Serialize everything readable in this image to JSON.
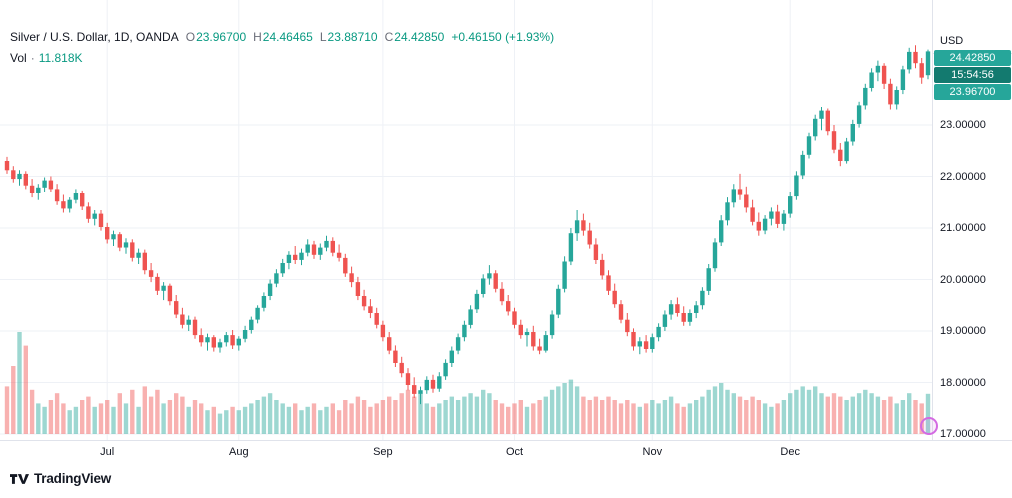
{
  "header": {
    "symbol": "Silver / U.S. Dollar, 1D, OANDA",
    "ohlc": [
      {
        "label": "O",
        "value": "23.96700"
      },
      {
        "label": "H",
        "value": "24.46465"
      },
      {
        "label": "L",
        "value": "23.88710"
      },
      {
        "label": "C",
        "value": "24.42850"
      }
    ],
    "change": "+0.46150 (+1.93%)",
    "vol_label": "Vol",
    "vol_sep": "·",
    "vol_value": "11.818K"
  },
  "axis": {
    "currency": "USD",
    "badges": {
      "last_price": "24.42850",
      "countdown": "15:54:56",
      "open_price": "23.96700"
    }
  },
  "footer": {
    "brand": "TradingView"
  },
  "colors": {
    "up": "#26a69a",
    "down": "#ef5350",
    "vol_up": "rgba(38,166,154,0.45)",
    "vol_down": "rgba(239,83,80,0.45)",
    "grid": "#eef1f6",
    "axis_text": "#131722",
    "accent_green": "#089981",
    "badge_last": "#26a69a",
    "badge_countdown": "#137a6f",
    "badge_open": "#26a69a"
  },
  "chart_data": {
    "type": "candlestick+volume",
    "title": "Silver / U.S. Dollar, 1D, OANDA",
    "timeframe": "1D",
    "ylabel": "USD",
    "ylim": [
      17.0,
      24.9
    ],
    "y_axis_ticks": [
      23,
      22,
      21,
      20,
      19,
      18,
      17
    ],
    "volume_unit": "K",
    "candle_format": [
      "open",
      "high",
      "low",
      "close",
      "volume_k"
    ],
    "month_labels": [
      {
        "label": "Jul",
        "index": 16
      },
      {
        "label": "Aug",
        "index": 37
      },
      {
        "label": "Sep",
        "index": 60
      },
      {
        "label": "Oct",
        "index": 81
      },
      {
        "label": "Nov",
        "index": 103
      },
      {
        "label": "Dec",
        "index": 125
      }
    ],
    "candles": [
      [
        22.3,
        22.38,
        22.05,
        22.12,
        14
      ],
      [
        22.12,
        22.2,
        21.88,
        21.95,
        20
      ],
      [
        21.95,
        22.12,
        21.82,
        22.05,
        30
      ],
      [
        22.05,
        22.1,
        21.75,
        21.82,
        26
      ],
      [
        21.82,
        21.95,
        21.6,
        21.68,
        13
      ],
      [
        21.68,
        21.85,
        21.55,
        21.78,
        9
      ],
      [
        21.78,
        21.98,
        21.7,
        21.92,
        8
      ],
      [
        21.92,
        22.0,
        21.7,
        21.75,
        10
      ],
      [
        21.75,
        21.85,
        21.45,
        21.52,
        12
      ],
      [
        21.52,
        21.65,
        21.3,
        21.38,
        9
      ],
      [
        21.38,
        21.6,
        21.3,
        21.55,
        7
      ],
      [
        21.55,
        21.75,
        21.48,
        21.68,
        8
      ],
      [
        21.68,
        21.72,
        21.35,
        21.42,
        10
      ],
      [
        21.42,
        21.5,
        21.1,
        21.18,
        11
      ],
      [
        21.18,
        21.35,
        21.05,
        21.28,
        8
      ],
      [
        21.28,
        21.35,
        20.95,
        21.02,
        9
      ],
      [
        21.02,
        21.1,
        20.7,
        20.78,
        10
      ],
      [
        20.78,
        20.95,
        20.65,
        20.88,
        8
      ],
      [
        20.88,
        20.92,
        20.55,
        20.62,
        12
      ],
      [
        20.62,
        20.8,
        20.5,
        20.72,
        9
      ],
      [
        20.72,
        20.78,
        20.35,
        20.42,
        13
      ],
      [
        20.42,
        20.6,
        20.3,
        20.52,
        8
      ],
      [
        20.52,
        20.58,
        20.1,
        20.18,
        14
      ],
      [
        20.18,
        20.32,
        19.95,
        20.05,
        11
      ],
      [
        20.05,
        20.12,
        19.7,
        19.78,
        13
      ],
      [
        19.78,
        19.95,
        19.6,
        19.88,
        9
      ],
      [
        19.88,
        19.92,
        19.5,
        19.58,
        10
      ],
      [
        19.58,
        19.7,
        19.25,
        19.32,
        12
      ],
      [
        19.32,
        19.45,
        19.05,
        19.12,
        11
      ],
      [
        19.12,
        19.3,
        19.0,
        19.22,
        8
      ],
      [
        19.22,
        19.28,
        18.85,
        18.92,
        10
      ],
      [
        18.92,
        19.05,
        18.7,
        18.78,
        9
      ],
      [
        18.78,
        18.95,
        18.62,
        18.88,
        7
      ],
      [
        18.88,
        18.92,
        18.6,
        18.68,
        8
      ],
      [
        18.68,
        18.85,
        18.58,
        18.78,
        6
      ],
      [
        18.78,
        18.98,
        18.7,
        18.92,
        7
      ],
      [
        18.92,
        19.02,
        18.65,
        18.72,
        8
      ],
      [
        18.72,
        18.9,
        18.62,
        18.85,
        7
      ],
      [
        18.85,
        19.1,
        18.78,
        19.02,
        8
      ],
      [
        19.02,
        19.28,
        18.95,
        19.22,
        9
      ],
      [
        19.22,
        19.5,
        19.15,
        19.45,
        10
      ],
      [
        19.45,
        19.75,
        19.38,
        19.68,
        11
      ],
      [
        19.68,
        20.0,
        19.6,
        19.92,
        12
      ],
      [
        19.92,
        20.2,
        19.85,
        20.12,
        10
      ],
      [
        20.12,
        20.4,
        20.05,
        20.32,
        9
      ],
      [
        20.32,
        20.55,
        20.2,
        20.48,
        8
      ],
      [
        20.48,
        20.65,
        20.3,
        20.38,
        9
      ],
      [
        20.38,
        20.6,
        20.28,
        20.52,
        7
      ],
      [
        20.52,
        20.78,
        20.45,
        20.68,
        8
      ],
      [
        20.68,
        20.75,
        20.4,
        20.48,
        9
      ],
      [
        20.48,
        20.7,
        20.38,
        20.62,
        7
      ],
      [
        20.62,
        20.85,
        20.55,
        20.75,
        8
      ],
      [
        20.75,
        20.82,
        20.45,
        20.52,
        9
      ],
      [
        20.52,
        20.68,
        20.35,
        20.42,
        7
      ],
      [
        20.42,
        20.5,
        20.05,
        20.12,
        10
      ],
      [
        20.12,
        20.25,
        19.85,
        19.95,
        9
      ],
      [
        19.95,
        20.05,
        19.6,
        19.68,
        11
      ],
      [
        19.68,
        19.8,
        19.4,
        19.48,
        10
      ],
      [
        19.48,
        19.62,
        19.25,
        19.35,
        8
      ],
      [
        19.35,
        19.45,
        19.05,
        19.12,
        9
      ],
      [
        19.12,
        19.2,
        18.8,
        18.88,
        10
      ],
      [
        18.88,
        18.98,
        18.55,
        18.62,
        11
      ],
      [
        18.62,
        18.72,
        18.3,
        18.38,
        10
      ],
      [
        18.38,
        18.5,
        18.1,
        18.18,
        12
      ],
      [
        18.18,
        18.28,
        17.85,
        17.95,
        13
      ],
      [
        17.95,
        18.1,
        17.7,
        17.78,
        11
      ],
      [
        17.78,
        17.92,
        17.58,
        17.85,
        12
      ],
      [
        17.85,
        18.12,
        17.78,
        18.05,
        9
      ],
      [
        18.05,
        18.15,
        17.8,
        17.88,
        8
      ],
      [
        17.88,
        18.2,
        17.82,
        18.12,
        9
      ],
      [
        18.12,
        18.45,
        18.05,
        18.38,
        10
      ],
      [
        18.38,
        18.7,
        18.3,
        18.62,
        11
      ],
      [
        18.62,
        18.95,
        18.55,
        18.88,
        10
      ],
      [
        18.88,
        19.2,
        18.8,
        19.12,
        11
      ],
      [
        19.12,
        19.5,
        19.05,
        19.42,
        12
      ],
      [
        19.42,
        19.8,
        19.35,
        19.72,
        11
      ],
      [
        19.72,
        20.1,
        19.65,
        20.02,
        13
      ],
      [
        20.02,
        20.28,
        19.9,
        20.12,
        12
      ],
      [
        20.12,
        20.18,
        19.75,
        19.82,
        10
      ],
      [
        19.82,
        19.95,
        19.5,
        19.58,
        9
      ],
      [
        19.58,
        19.7,
        19.3,
        19.38,
        8
      ],
      [
        19.38,
        19.45,
        19.05,
        19.12,
        9
      ],
      [
        19.12,
        19.22,
        18.85,
        18.92,
        10
      ],
      [
        18.92,
        19.05,
        18.7,
        18.98,
        8
      ],
      [
        18.98,
        19.1,
        18.62,
        18.7,
        9
      ],
      [
        18.7,
        18.85,
        18.55,
        18.62,
        10
      ],
      [
        18.62,
        19.0,
        18.58,
        18.92,
        11
      ],
      [
        18.92,
        19.4,
        18.85,
        19.32,
        13
      ],
      [
        19.32,
        19.9,
        19.25,
        19.82,
        14
      ],
      [
        19.82,
        20.45,
        19.75,
        20.35,
        15
      ],
      [
        20.35,
        21.0,
        20.28,
        20.9,
        16
      ],
      [
        20.9,
        21.35,
        20.75,
        21.15,
        14
      ],
      [
        21.15,
        21.28,
        20.85,
        20.95,
        11
      ],
      [
        20.95,
        21.1,
        20.6,
        20.68,
        10
      ],
      [
        20.68,
        20.8,
        20.3,
        20.38,
        11
      ],
      [
        20.38,
        20.5,
        20.0,
        20.08,
        10
      ],
      [
        20.08,
        20.18,
        19.7,
        19.78,
        11
      ],
      [
        19.78,
        19.92,
        19.45,
        19.52,
        10
      ],
      [
        19.52,
        19.6,
        19.15,
        19.22,
        9
      ],
      [
        19.22,
        19.35,
        18.9,
        18.98,
        10
      ],
      [
        18.98,
        19.05,
        18.62,
        18.7,
        9
      ],
      [
        18.7,
        18.88,
        18.55,
        18.8,
        8
      ],
      [
        18.8,
        18.92,
        18.58,
        18.65,
        9
      ],
      [
        18.65,
        18.95,
        18.58,
        18.88,
        10
      ],
      [
        18.88,
        19.15,
        18.8,
        19.08,
        9
      ],
      [
        19.08,
        19.4,
        19.0,
        19.32,
        10
      ],
      [
        19.32,
        19.6,
        19.22,
        19.52,
        11
      ],
      [
        19.52,
        19.65,
        19.28,
        19.35,
        9
      ],
      [
        19.35,
        19.48,
        19.1,
        19.18,
        8
      ],
      [
        19.18,
        19.42,
        19.1,
        19.35,
        9
      ],
      [
        19.35,
        19.58,
        19.25,
        19.5,
        10
      ],
      [
        19.5,
        19.85,
        19.42,
        19.78,
        11
      ],
      [
        19.78,
        20.3,
        19.7,
        20.22,
        13
      ],
      [
        20.22,
        20.8,
        20.15,
        20.72,
        14
      ],
      [
        20.72,
        21.25,
        20.65,
        21.15,
        15
      ],
      [
        21.15,
        21.6,
        21.05,
        21.5,
        13
      ],
      [
        21.5,
        21.85,
        21.4,
        21.75,
        12
      ],
      [
        21.75,
        22.05,
        21.55,
        21.65,
        11
      ],
      [
        21.65,
        21.8,
        21.3,
        21.4,
        10
      ],
      [
        21.4,
        21.55,
        21.05,
        21.12,
        11
      ],
      [
        21.12,
        21.3,
        20.85,
        20.95,
        10
      ],
      [
        20.95,
        21.25,
        20.88,
        21.18,
        9
      ],
      [
        21.18,
        21.4,
        21.05,
        21.32,
        8
      ],
      [
        21.32,
        21.45,
        21.0,
        21.08,
        9
      ],
      [
        21.08,
        21.35,
        20.95,
        21.28,
        10
      ],
      [
        21.28,
        21.7,
        21.2,
        21.62,
        12
      ],
      [
        21.62,
        22.1,
        21.55,
        22.02,
        13
      ],
      [
        22.02,
        22.5,
        21.95,
        22.42,
        14
      ],
      [
        22.42,
        22.85,
        22.35,
        22.78,
        13
      ],
      [
        22.78,
        23.2,
        22.7,
        23.12,
        14
      ],
      [
        23.12,
        23.35,
        22.9,
        23.28,
        12
      ],
      [
        23.28,
        23.32,
        22.8,
        22.88,
        11
      ],
      [
        22.88,
        23.0,
        22.45,
        22.52,
        12
      ],
      [
        22.52,
        22.65,
        22.2,
        22.3,
        11
      ],
      [
        22.3,
        22.75,
        22.25,
        22.68,
        10
      ],
      [
        22.68,
        23.1,
        22.6,
        23.02,
        11
      ],
      [
        23.02,
        23.45,
        22.95,
        23.38,
        12
      ],
      [
        23.38,
        23.8,
        23.3,
        23.72,
        13
      ],
      [
        23.72,
        24.1,
        23.65,
        24.02,
        12
      ],
      [
        24.02,
        24.25,
        23.85,
        24.15,
        11
      ],
      [
        24.15,
        24.2,
        23.7,
        23.8,
        10
      ],
      [
        23.8,
        23.9,
        23.3,
        23.4,
        11
      ],
      [
        23.4,
        23.75,
        23.3,
        23.68,
        9
      ],
      [
        23.68,
        24.15,
        23.6,
        24.08,
        10
      ],
      [
        24.08,
        24.5,
        24.0,
        24.42,
        12
      ],
      [
        24.42,
        24.55,
        24.1,
        24.2,
        10
      ],
      [
        24.2,
        24.3,
        23.8,
        23.92,
        9
      ],
      [
        23.967,
        24.46465,
        23.8871,
        24.4285,
        11.818
      ]
    ]
  }
}
